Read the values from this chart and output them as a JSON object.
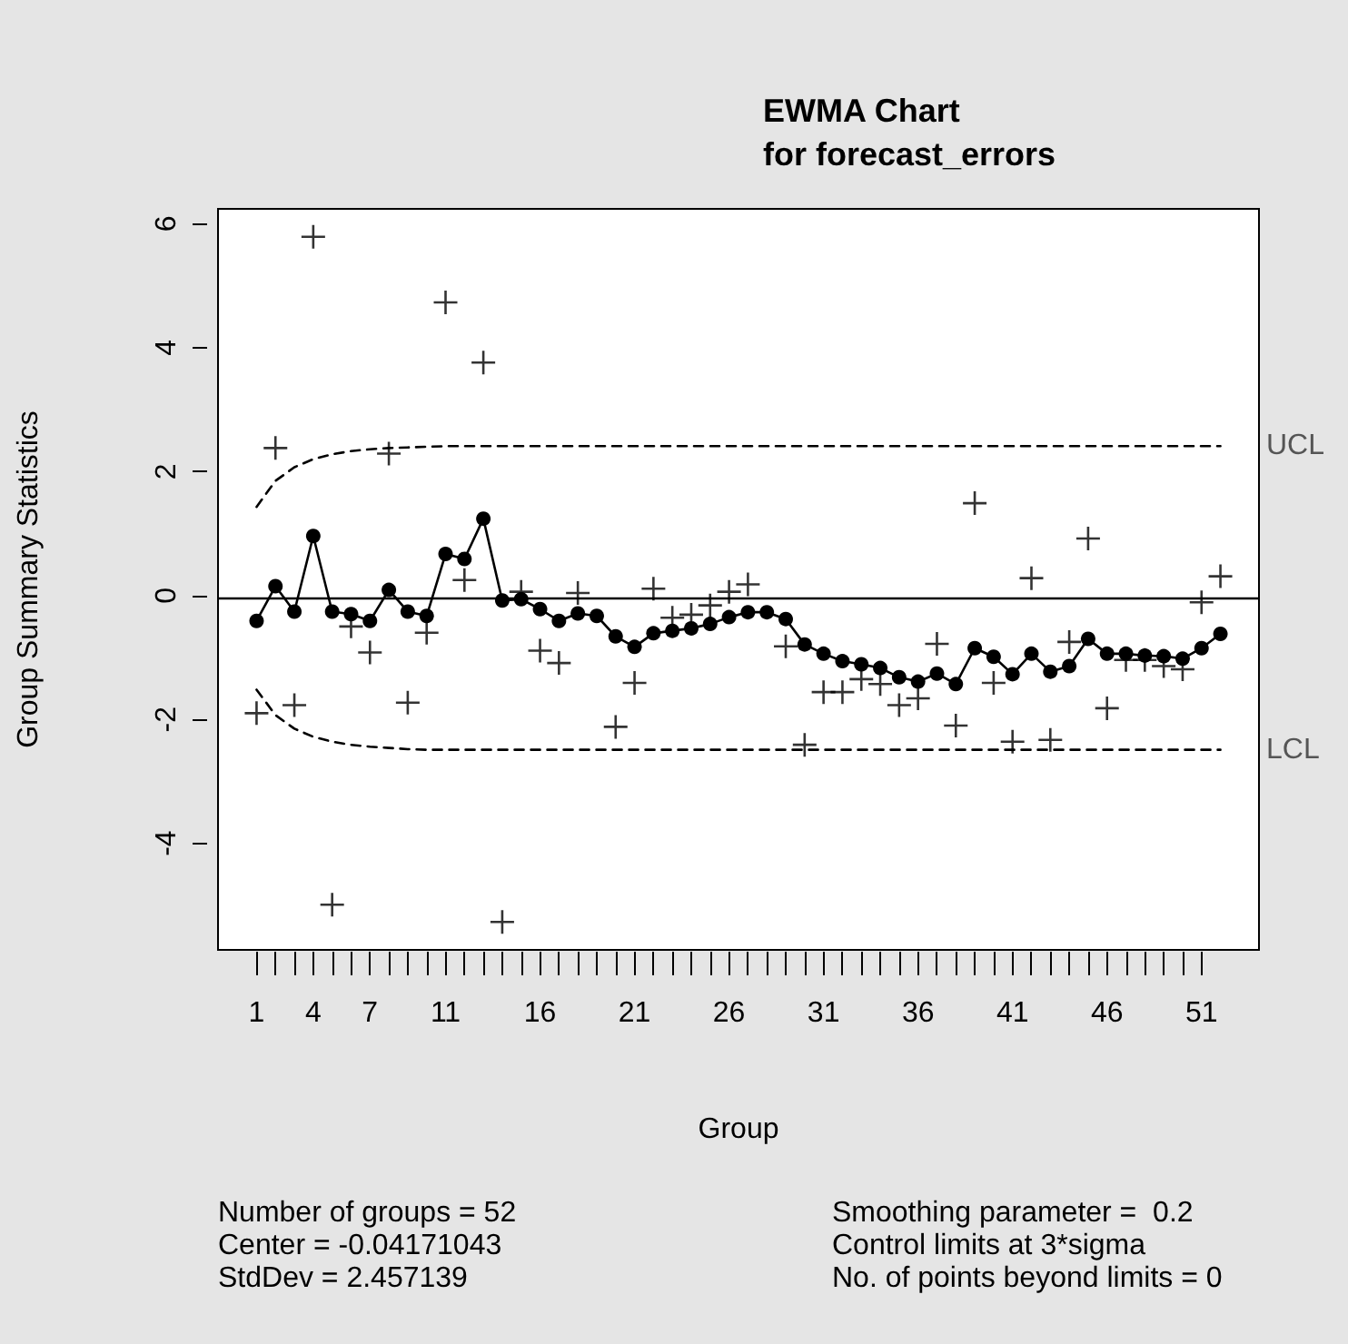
{
  "chart_data": {
    "type": "line",
    "title": "EWMA Chart\nfor forecast_errors",
    "xlabel": "Group",
    "ylabel": "Group Summary Statistics",
    "x": [
      1,
      2,
      3,
      4,
      5,
      6,
      7,
      8,
      9,
      10,
      11,
      12,
      13,
      14,
      15,
      16,
      17,
      18,
      19,
      20,
      21,
      22,
      23,
      24,
      25,
      26,
      27,
      28,
      29,
      30,
      31,
      32,
      33,
      34,
      35,
      36,
      37,
      38,
      39,
      40,
      41,
      42,
      43,
      44,
      45,
      46,
      47,
      48,
      49,
      50,
      51,
      52
    ],
    "xlim": [
      -1.04,
      54.04
    ],
    "xticks": [
      1,
      {
        "value": 2,
        "label": null
      },
      {
        "value": 3,
        "label": null
      },
      4,
      {
        "value": 5,
        "label": null
      },
      {
        "value": 6,
        "label": null
      },
      7,
      {
        "value": 8,
        "label": null
      },
      {
        "value": 9,
        "label": null
      },
      {
        "value": 10,
        "label": null
      },
      11,
      {
        "value": 12,
        "label": null
      },
      {
        "value": 13,
        "label": null
      },
      {
        "value": 14,
        "label": null
      },
      {
        "value": 15,
        "label": null
      },
      16,
      {
        "value": 17,
        "label": null
      },
      {
        "value": 18,
        "label": null
      },
      {
        "value": 19,
        "label": null
      },
      {
        "value": 20,
        "label": null
      },
      21,
      {
        "value": 22,
        "label": null
      },
      {
        "value": 23,
        "label": null
      },
      {
        "value": 24,
        "label": null
      },
      {
        "value": 25,
        "label": null
      },
      26,
      {
        "value": 27,
        "label": null
      },
      {
        "value": 28,
        "label": null
      },
      {
        "value": 29,
        "label": null
      },
      {
        "value": 30,
        "label": null
      },
      31,
      {
        "value": 32,
        "label": null
      },
      {
        "value": 33,
        "label": null
      },
      {
        "value": 34,
        "label": null
      },
      {
        "value": 35,
        "label": null
      },
      36,
      {
        "value": 37,
        "label": null
      },
      {
        "value": 38,
        "label": null
      },
      {
        "value": 39,
        "label": null
      },
      {
        "value": 40,
        "label": null
      },
      41,
      {
        "value": 42,
        "label": null
      },
      {
        "value": 43,
        "label": null
      },
      {
        "value": 44,
        "label": null
      },
      {
        "value": 45,
        "label": null
      },
      46,
      {
        "value": 47,
        "label": null
      },
      {
        "value": 48,
        "label": null
      },
      {
        "value": 49,
        "label": null
      },
      {
        "value": 50,
        "label": null
      },
      51
    ],
    "ylim": [
      -5.72,
      6.24
    ],
    "yticks": [
      -4,
      -2,
      0,
      2,
      4,
      6
    ],
    "series": [
      {
        "type": "scatter",
        "marker": "cross",
        "color": "#000000",
        "values": [
          -1.9,
          2.38,
          -1.77,
          5.79,
          -4.99,
          -0.5,
          -0.92,
          2.29,
          -1.73,
          -0.6,
          4.73,
          0.25,
          3.76,
          -5.27,
          0.06,
          -0.89,
          -1.09,
          0.04,
          null,
          -2.12,
          -1.41,
          0.11,
          -0.36,
          -0.31,
          -0.16,
          0.06,
          0.18,
          null,
          -0.82,
          -2.41,
          -1.56,
          -1.56,
          -1.35,
          -1.43,
          -1.77,
          -1.66,
          -0.78,
          -2.1,
          1.49,
          -1.41,
          -2.36,
          0.28,
          -2.33,
          -0.75,
          0.92,
          -1.82,
          -1.04,
          -1.04,
          -1.14,
          -1.19,
          -0.11,
          0.31
        ]
      },
      {
        "marker": "circle",
        "line_style": "solid",
        "color": "#000000",
        "values": [
          -0.41,
          0.15,
          -0.26,
          0.96,
          -0.26,
          -0.3,
          -0.41,
          0.09,
          -0.26,
          -0.33,
          0.67,
          0.59,
          1.24,
          -0.08,
          -0.06,
          -0.22,
          -0.41,
          -0.29,
          -0.33,
          -0.66,
          -0.83,
          -0.61,
          -0.57,
          -0.53,
          -0.46,
          -0.35,
          -0.27,
          -0.27,
          -0.38,
          -0.79,
          -0.94,
          -1.06,
          -1.11,
          -1.17,
          -1.32,
          -1.39,
          -1.26,
          -1.43,
          -0.85,
          -0.99,
          -1.27,
          -0.94,
          -1.23,
          -1.14,
          -0.7,
          -0.94,
          -0.94,
          -0.97,
          -0.98,
          -1.02,
          -0.85,
          -0.62
        ]
      },
      {
        "type": "line",
        "name": "UCL",
        "marker": "none",
        "line_style": "dashed",
        "color": "#000000",
        "values": [
          1.43,
          1.85,
          2.07,
          2.2,
          2.28,
          2.33,
          2.36,
          2.38,
          2.39,
          2.4,
          2.41,
          2.41,
          2.41,
          2.41,
          2.41,
          2.41,
          2.41,
          2.41,
          2.41,
          2.41,
          2.41,
          2.41,
          2.41,
          2.41,
          2.41,
          2.41,
          2.41,
          2.41,
          2.41,
          2.41,
          2.41,
          2.41,
          2.41,
          2.41,
          2.41,
          2.41,
          2.41,
          2.41,
          2.41,
          2.41,
          2.41,
          2.41,
          2.41,
          2.41,
          2.41,
          2.41,
          2.41,
          2.41,
          2.41,
          2.41,
          2.41,
          2.41
        ]
      },
      {
        "type": "line",
        "name": "LCL",
        "marker": "none",
        "line_style": "dashed",
        "color": "#000000",
        "values": [
          -1.52,
          -1.93,
          -2.15,
          -2.28,
          -2.36,
          -2.41,
          -2.44,
          -2.46,
          -2.48,
          -2.49,
          -2.49,
          -2.49,
          -2.49,
          -2.49,
          -2.49,
          -2.49,
          -2.49,
          -2.49,
          -2.49,
          -2.49,
          -2.49,
          -2.49,
          -2.49,
          -2.49,
          -2.49,
          -2.49,
          -2.49,
          -2.49,
          -2.49,
          -2.49,
          -2.49,
          -2.49,
          -2.49,
          -2.49,
          -2.49,
          -2.49,
          -2.49,
          -2.49,
          -2.49,
          -2.49,
          -2.49,
          -2.49,
          -2.49,
          -2.49,
          -2.49,
          -2.49,
          -2.49,
          -2.49,
          -2.49,
          -2.49,
          -2.49,
          -2.49
        ]
      }
    ],
    "ref_lines": [
      {
        "axis": "y",
        "value": -0.04171043,
        "color": "#000000",
        "line_style": "solid"
      }
    ],
    "annotations": [
      "Number of groups = 52",
      "Smoothing parameter =  0.2",
      "Center = -0.04171043",
      "Control limits at 3*sigma",
      "StdDev = 2.457139",
      "No. of points beyond limits = 0"
    ],
    "grid": false,
    "legend": false
  }
}
